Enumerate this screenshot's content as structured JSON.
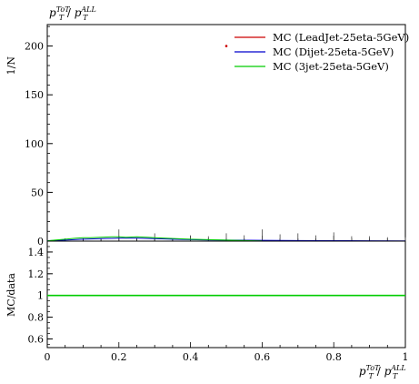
{
  "chart_data": [
    {
      "panel": "main",
      "type": "line",
      "title": "p_T^{ToT} / p_T^{ALL}",
      "title_parts": {
        "base": "p",
        "sup1": "ToT",
        "sub1": "T",
        "slash": " / ",
        "base2": "p",
        "sup2": "ALL",
        "sub2": "T"
      },
      "ylabel": "1/N",
      "xlim": [
        0,
        1
      ],
      "ylim": [
        0,
        222
      ],
      "yticks": [
        0,
        50,
        100,
        150,
        200
      ],
      "ytick_labels": [
        "0",
        "50",
        "100",
        "150",
        "200"
      ],
      "legend_position": "top-right",
      "series": [
        {
          "name": "MC (LeadJet-25eta-5GeV)",
          "color": "#cc0000",
          "x": [
            0.5
          ],
          "y": [
            200
          ]
        },
        {
          "name": "MC (Dijet-25eta-5GeV)",
          "color": "#0000cc",
          "x": [
            0.0,
            0.05,
            0.1,
            0.15,
            0.2,
            0.25,
            0.3,
            0.35,
            0.4,
            0.45,
            0.5,
            0.6,
            0.7,
            0.8,
            0.9,
            1.0
          ],
          "y": [
            0.5,
            1.0,
            2.0,
            2.5,
            3.0,
            3.0,
            2.5,
            2.0,
            1.5,
            1.2,
            1.0,
            0.8,
            0.6,
            0.5,
            0.4,
            0.3
          ]
        },
        {
          "name": "MC (3jet-25eta-5GeV)",
          "color": "#00cc00",
          "x": [
            0.0,
            0.02,
            0.05,
            0.08,
            0.1,
            0.12,
            0.15,
            0.18,
            0.2,
            0.22,
            0.25,
            0.28,
            0.3,
            0.33,
            0.36,
            0.4,
            0.45,
            0.5,
            0.55,
            0.6
          ],
          "y": [
            0.3,
            1.0,
            2.0,
            3.0,
            3.5,
            3.5,
            4.0,
            4.5,
            4.5,
            4.0,
            4.5,
            4.0,
            3.5,
            3.0,
            2.5,
            2.0,
            1.5,
            1.0,
            0.6,
            0.3
          ]
        }
      ],
      "error_bars": {
        "x": [
          0.2,
          0.3,
          0.4,
          0.45,
          0.5,
          0.55,
          0.6,
          0.65,
          0.7,
          0.75,
          0.8,
          0.85,
          0.9,
          0.95,
          1.0
        ],
        "high": [
          12,
          8,
          6,
          5,
          8,
          6,
          12,
          7,
          8,
          6,
          9,
          5,
          5,
          4,
          4
        ]
      }
    },
    {
      "panel": "ratio",
      "type": "line",
      "ylabel": "MC/data",
      "xlabel": "p_T^{ToT} / p_T^{ALL}",
      "xlabel_parts": {
        "base": "p",
        "sup1": "ToT",
        "sub1": "T",
        "slash": " / ",
        "base2": "p",
        "sup2": "ALL",
        "sub2": "T"
      },
      "xlim": [
        0,
        1
      ],
      "ylim": [
        0.52,
        1.5
      ],
      "xticks": [
        0,
        0.2,
        0.4,
        0.6,
        0.8,
        1.0
      ],
      "xtick_labels": [
        "0",
        "0.2",
        "0.4",
        "0.6",
        "0.8",
        "1"
      ],
      "yticks": [
        0.6,
        0.8,
        1.0,
        1.2,
        1.4
      ],
      "ytick_labels": [
        "0.6",
        "0.8",
        "1",
        "1.2",
        "1.4"
      ],
      "series": [
        {
          "color": "#cc0000",
          "x": [
            0.0,
            1.0
          ],
          "y": [
            1.0,
            1.0
          ]
        },
        {
          "color": "#0000cc",
          "x": [
            0.0,
            1.0
          ],
          "y": [
            1.0,
            1.0
          ]
        },
        {
          "color": "#00cc00",
          "x": [
            0.0,
            1.0
          ],
          "y": [
            1.0,
            1.0
          ]
        }
      ]
    }
  ]
}
